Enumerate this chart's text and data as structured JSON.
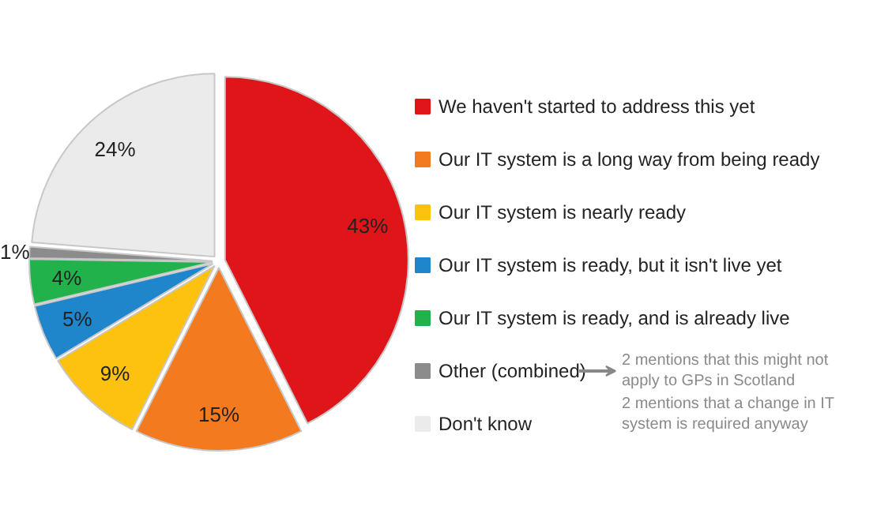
{
  "chart_data": {
    "type": "pie",
    "categories": [
      "We haven't started to address this yet",
      "Our IT system is a long way from being ready",
      "Our IT system is nearly ready",
      "Our IT system is ready, but it isn't live yet",
      "Our IT system is ready, and is already live",
      "Other (combined)",
      "Don't know"
    ],
    "values": [
      43,
      15,
      9,
      5,
      4,
      1,
      24
    ],
    "value_labels": [
      "43%",
      "15%",
      "9%",
      "5%",
      "4%",
      "1%",
      "24%"
    ],
    "colors": [
      "#e0151a",
      "#f47a20",
      "#fdc20f",
      "#1f86cc",
      "#21b24b",
      "#8c8c8c",
      "#ebebeb"
    ],
    "legend": "right",
    "annotations": [
      "2 mentions that this might not apply to GPs in Scotland",
      "2 mentions that a change in IT system is required anyway"
    ]
  }
}
